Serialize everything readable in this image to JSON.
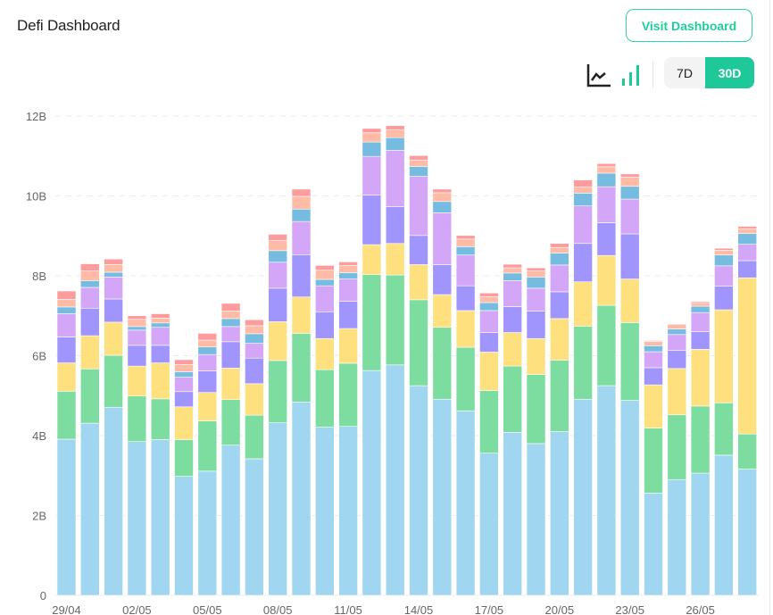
{
  "header": {
    "title": "Defi Dashboard",
    "visit_label": "Visit Dashboard"
  },
  "controls": {
    "chart_type_icons": [
      "line-chart-icon",
      "bar-chart-icon"
    ],
    "ranges": [
      "7D",
      "30D"
    ],
    "selected_range": "30D"
  },
  "colors": {
    "accent": "#1fc898",
    "series": [
      "#a0d6f0",
      "#7ddc9f",
      "#fee17e",
      "#a095fc",
      "#d4a6f7",
      "#76bbe0",
      "#ffbba5",
      "#fe9b9d"
    ]
  },
  "chart_data": {
    "type": "bar",
    "stacked": true,
    "ylim": [
      0,
      12
    ],
    "yticks": [
      "0",
      "2B",
      "4B",
      "6B",
      "8B",
      "10B",
      "12B"
    ],
    "grid": true,
    "categories": [
      "29/04",
      "30/04",
      "01/05",
      "02/05",
      "03/05",
      "04/05",
      "05/05",
      "06/05",
      "07/05",
      "08/05",
      "09/05",
      "10/05",
      "11/05",
      "12/05",
      "13/05",
      "14/05",
      "15/05",
      "16/05",
      "17/05",
      "18/05",
      "19/05",
      "20/05",
      "21/05",
      "22/05",
      "23/05",
      "24/05",
      "25/05",
      "26/05",
      "27/05",
      "28/05"
    ],
    "xtick_labels": [
      "29/04",
      "02/05",
      "05/05",
      "08/05",
      "11/05",
      "14/05",
      "17/05",
      "20/05",
      "23/05",
      "26/05"
    ],
    "series": [
      {
        "values": [
          3.91,
          4.31,
          4.71,
          3.85,
          3.9,
          2.98,
          3.11,
          3.76,
          3.42,
          4.32,
          4.84,
          4.21,
          4.23,
          5.63,
          5.77,
          5.25,
          4.91,
          4.62,
          3.56,
          4.08,
          3.8,
          4.1,
          4.91,
          5.25,
          4.88,
          2.56,
          2.9,
          3.06,
          3.51,
          3.16
        ]
      },
      {
        "values": [
          1.2,
          1.36,
          1.3,
          1.14,
          1.02,
          0.92,
          1.26,
          1.14,
          1.09,
          1.56,
          1.72,
          1.44,
          1.58,
          2.4,
          2.25,
          2.15,
          1.8,
          1.59,
          1.57,
          1.66,
          1.73,
          1.79,
          1.83,
          2.01,
          1.95,
          1.63,
          1.62,
          1.68,
          1.31,
          0.88
        ]
      },
      {
        "values": [
          0.71,
          0.83,
          0.83,
          0.75,
          0.9,
          0.82,
          0.71,
          0.79,
          0.79,
          0.97,
          0.91,
          0.78,
          0.87,
          0.75,
          0.79,
          0.88,
          0.82,
          0.92,
          0.96,
          0.84,
          0.9,
          1.04,
          1.11,
          1.25,
          1.09,
          1.08,
          1.16,
          1.42,
          2.33,
          3.91
        ]
      },
      {
        "values": [
          0.65,
          0.69,
          0.58,
          0.52,
          0.44,
          0.38,
          0.54,
          0.66,
          0.64,
          0.84,
          1.06,
          0.67,
          0.68,
          1.24,
          0.92,
          0.73,
          0.75,
          0.62,
          0.49,
          0.65,
          0.69,
          0.67,
          0.96,
          0.82,
          1.13,
          0.43,
          0.45,
          0.44,
          0.59,
          0.43
        ]
      },
      {
        "values": [
          0.58,
          0.52,
          0.55,
          0.38,
          0.45,
          0.36,
          0.41,
          0.38,
          0.37,
          0.65,
          0.83,
          0.65,
          0.56,
          0.97,
          1.41,
          1.48,
          1.3,
          0.77,
          0.55,
          0.65,
          0.57,
          0.67,
          0.94,
          0.9,
          0.87,
          0.4,
          0.4,
          0.48,
          0.51,
          0.41
        ]
      },
      {
        "values": [
          0.17,
          0.17,
          0.12,
          0.09,
          0.11,
          0.14,
          0.19,
          0.2,
          0.24,
          0.29,
          0.31,
          0.16,
          0.16,
          0.36,
          0.32,
          0.25,
          0.28,
          0.21,
          0.2,
          0.19,
          0.28,
          0.3,
          0.32,
          0.34,
          0.32,
          0.15,
          0.14,
          0.16,
          0.27,
          0.27
        ]
      },
      {
        "values": [
          0.19,
          0.24,
          0.19,
          0.18,
          0.12,
          0.18,
          0.17,
          0.19,
          0.2,
          0.25,
          0.32,
          0.23,
          0.18,
          0.23,
          0.19,
          0.16,
          0.22,
          0.19,
          0.15,
          0.13,
          0.15,
          0.14,
          0.15,
          0.16,
          0.23,
          0.11,
          0.11,
          0.09,
          0.12,
          0.12
        ]
      },
      {
        "values": [
          0.21,
          0.18,
          0.14,
          0.09,
          0.11,
          0.12,
          0.17,
          0.19,
          0.15,
          0.16,
          0.18,
          0.12,
          0.09,
          0.11,
          0.11,
          0.11,
          0.09,
          0.09,
          0.09,
          0.09,
          0.08,
          0.1,
          0.18,
          0.08,
          0.08,
          0.02,
          0.02,
          0.03,
          0.05,
          0.06
        ]
      }
    ]
  }
}
